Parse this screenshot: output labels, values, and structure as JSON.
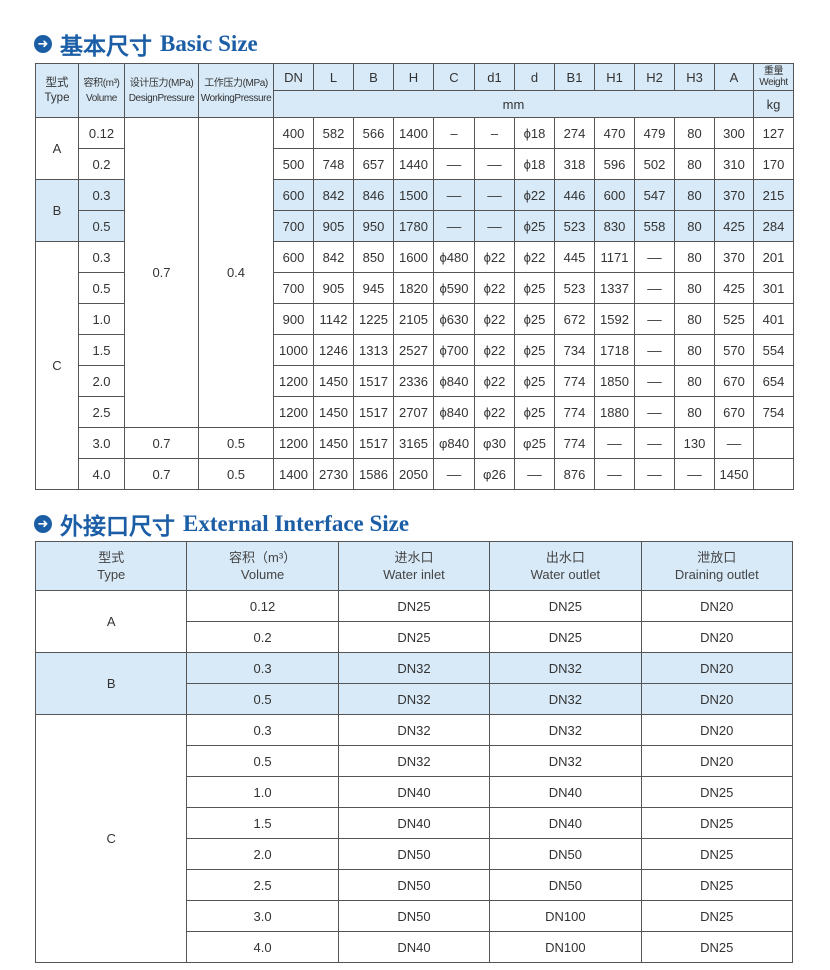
{
  "basic": {
    "title_cn": "基本尺寸",
    "title_en": "Basic Size",
    "icon": "arrow-circle-right-icon",
    "headers": {
      "type_cn": "型式",
      "type_en": "Type",
      "volume_cn": "容积(m³)",
      "volume_en": "Volume",
      "design_cn": "设计压力(MPa)",
      "design_en": "DesignPressure",
      "working_cn": "工作压力(MPa)",
      "working_en": "WorkingPressure",
      "dims": [
        "DN",
        "L",
        "B",
        "H",
        "C",
        "d1",
        "d",
        "B1",
        "H1",
        "H2",
        "H3",
        "A"
      ],
      "unit_mm": "mm",
      "weight_cn": "重量",
      "weight_en": "Weight",
      "unit_kg": "kg"
    },
    "groups": [
      {
        "type": "A",
        "rows": 2,
        "highlight": false
      },
      {
        "type": "B",
        "rows": 2,
        "highlight": true
      },
      {
        "type": "C",
        "rows": 8,
        "highlight": false
      }
    ],
    "pressure_groups": [
      {
        "design": "0.7",
        "working": "0.4",
        "rows": 10
      },
      {
        "design": "0.7",
        "working": "0.5",
        "rows": 1
      },
      {
        "design": "0.7",
        "working": "0.5",
        "rows": 1
      }
    ],
    "rows": [
      {
        "volume": "0.12",
        "values": [
          "400",
          "582",
          "566",
          "1400",
          "–",
          "–",
          "ϕ18",
          "274",
          "470",
          "479",
          "80",
          "300",
          "127"
        ]
      },
      {
        "volume": "0.2",
        "values": [
          "500",
          "748",
          "657",
          "1440",
          "––",
          "––",
          "ϕ18",
          "318",
          "596",
          "502",
          "80",
          "310",
          "170"
        ]
      },
      {
        "volume": "0.3",
        "values": [
          "600",
          "842",
          "846",
          "1500",
          "––",
          "––",
          "ϕ22",
          "446",
          "600",
          "547",
          "80",
          "370",
          "215"
        ]
      },
      {
        "volume": "0.5",
        "values": [
          "700",
          "905",
          "950",
          "1780",
          "––",
          "––",
          "ϕ25",
          "523",
          "830",
          "558",
          "80",
          "425",
          "284"
        ]
      },
      {
        "volume": "0.3",
        "values": [
          "600",
          "842",
          "850",
          "1600",
          "ϕ480",
          "ϕ22",
          "ϕ22",
          "445",
          "1171",
          "––",
          "80",
          "370",
          "201"
        ]
      },
      {
        "volume": "0.5",
        "values": [
          "700",
          "905",
          "945",
          "1820",
          "ϕ590",
          "ϕ22",
          "ϕ25",
          "523",
          "1337",
          "––",
          "80",
          "425",
          "301"
        ]
      },
      {
        "volume": "1.0",
        "values": [
          "900",
          "1142",
          "1225",
          "2105",
          "ϕ630",
          "ϕ22",
          "ϕ25",
          "672",
          "1592",
          "––",
          "80",
          "525",
          "401"
        ]
      },
      {
        "volume": "1.5",
        "values": [
          "1000",
          "1246",
          "1313",
          "2527",
          "ϕ700",
          "ϕ22",
          "ϕ25",
          "734",
          "1718",
          "––",
          "80",
          "570",
          "554"
        ]
      },
      {
        "volume": "2.0",
        "values": [
          "1200",
          "1450",
          "1517",
          "2336",
          "ϕ840",
          "ϕ22",
          "ϕ25",
          "774",
          "1850",
          "––",
          "80",
          "670",
          "654"
        ]
      },
      {
        "volume": "2.5",
        "values": [
          "1200",
          "1450",
          "1517",
          "2707",
          "ϕ840",
          "ϕ22",
          "ϕ25",
          "774",
          "1880",
          "––",
          "80",
          "670",
          "754"
        ]
      },
      {
        "volume": "3.0",
        "values": [
          "1200",
          "1450",
          "1517",
          "3165",
          "φ840",
          "φ30",
          "φ25",
          "774",
          "––",
          "––",
          "130",
          "––",
          ""
        ]
      },
      {
        "volume": "4.0",
        "values": [
          "1400",
          "2730",
          "1586",
          "2050",
          "––",
          "φ26",
          "––",
          "876",
          "––",
          "––",
          "––",
          "1450",
          ""
        ]
      }
    ]
  },
  "external": {
    "title_cn": "外接口尺寸",
    "title_en": "External Interface Size",
    "icon": "arrow-circle-right-icon",
    "headers": [
      {
        "cn": "型式",
        "en": "Type"
      },
      {
        "cn": "容积（m³）",
        "en": "Volume"
      },
      {
        "cn": "进水口",
        "en": "Water inlet"
      },
      {
        "cn": "出水口",
        "en": "Water outlet"
      },
      {
        "cn": "泄放口",
        "en": "Draining outlet"
      }
    ],
    "groups": [
      {
        "type": "A",
        "rows": 2,
        "highlight": false
      },
      {
        "type": "B",
        "rows": 2,
        "highlight": true
      },
      {
        "type": "C",
        "rows": 8,
        "highlight": false
      }
    ],
    "rows": [
      {
        "volume": "0.12",
        "inlet": "DN25",
        "outlet": "DN25",
        "drain": "DN20"
      },
      {
        "volume": "0.2",
        "inlet": "DN25",
        "outlet": "DN25",
        "drain": "DN20"
      },
      {
        "volume": "0.3",
        "inlet": "DN32",
        "outlet": "DN32",
        "drain": "DN20"
      },
      {
        "volume": "0.5",
        "inlet": "DN32",
        "outlet": "DN32",
        "drain": "DN20"
      },
      {
        "volume": "0.3",
        "inlet": "DN32",
        "outlet": "DN32",
        "drain": "DN20"
      },
      {
        "volume": "0.5",
        "inlet": "DN32",
        "outlet": "DN32",
        "drain": "DN20"
      },
      {
        "volume": "1.0",
        "inlet": "DN40",
        "outlet": "DN40",
        "drain": "DN25"
      },
      {
        "volume": "1.5",
        "inlet": "DN40",
        "outlet": "DN40",
        "drain": "DN25"
      },
      {
        "volume": "2.0",
        "inlet": "DN50",
        "outlet": "DN50",
        "drain": "DN25"
      },
      {
        "volume": "2.5",
        "inlet": "DN50",
        "outlet": "DN50",
        "drain": "DN25"
      },
      {
        "volume": "3.0",
        "inlet": "DN50",
        "outlet": "DN100",
        "drain": "DN25"
      },
      {
        "volume": "4.0",
        "inlet": "DN40",
        "outlet": "DN100",
        "drain": "DN25"
      }
    ]
  }
}
